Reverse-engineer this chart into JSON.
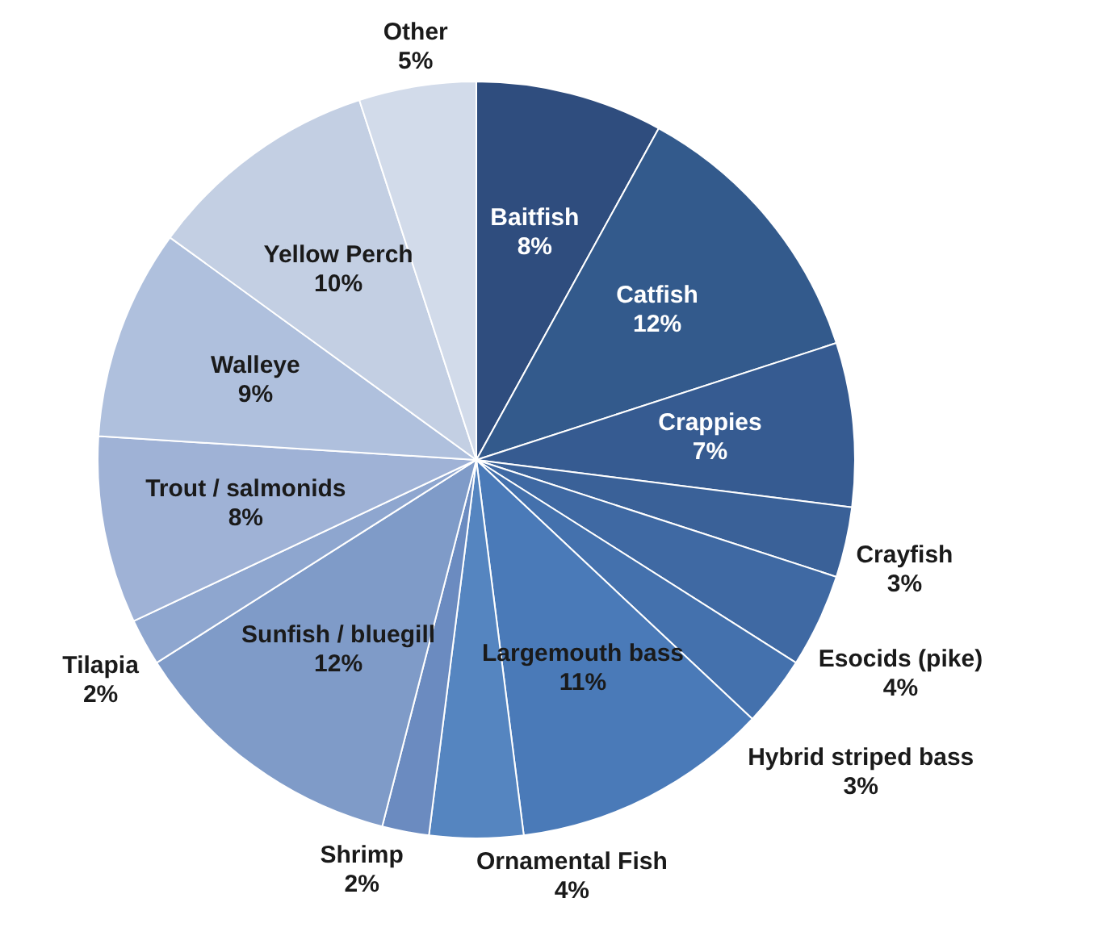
{
  "chart_data": {
    "type": "pie",
    "categories": [
      "Baitfish",
      "Catfish",
      "Crappies",
      "Crayfish",
      "Esocids (pike)",
      "Hybrid striped bass",
      "Largemouth bass",
      "Ornamental Fish",
      "Shrimp",
      "Sunfish / bluegill",
      "Tilapia",
      "Trout / salmonids",
      "Walleye",
      "Yellow Perch",
      "Other"
    ],
    "values": [
      8,
      12,
      7,
      3,
      4,
      3,
      11,
      4,
      2,
      12,
      2,
      8,
      9,
      10,
      5
    ],
    "value_labels": [
      "8%",
      "12%",
      "7%",
      "3%",
      "4%",
      "3%",
      "11%",
      "4%",
      "2%",
      "12%",
      "2%",
      "8%",
      "9%",
      "10%",
      "5%"
    ],
    "colors": [
      "#2f4d7e",
      "#335a8c",
      "#365b91",
      "#3a6198",
      "#3f69a3",
      "#4471ad",
      "#4a7ab8",
      "#5585c0",
      "#6b8bc0",
      "#7f9bc8",
      "#8ea6cf",
      "#9fb2d6",
      "#afc0dd",
      "#c3cfe3",
      "#d2dbea"
    ],
    "legend": false
  }
}
